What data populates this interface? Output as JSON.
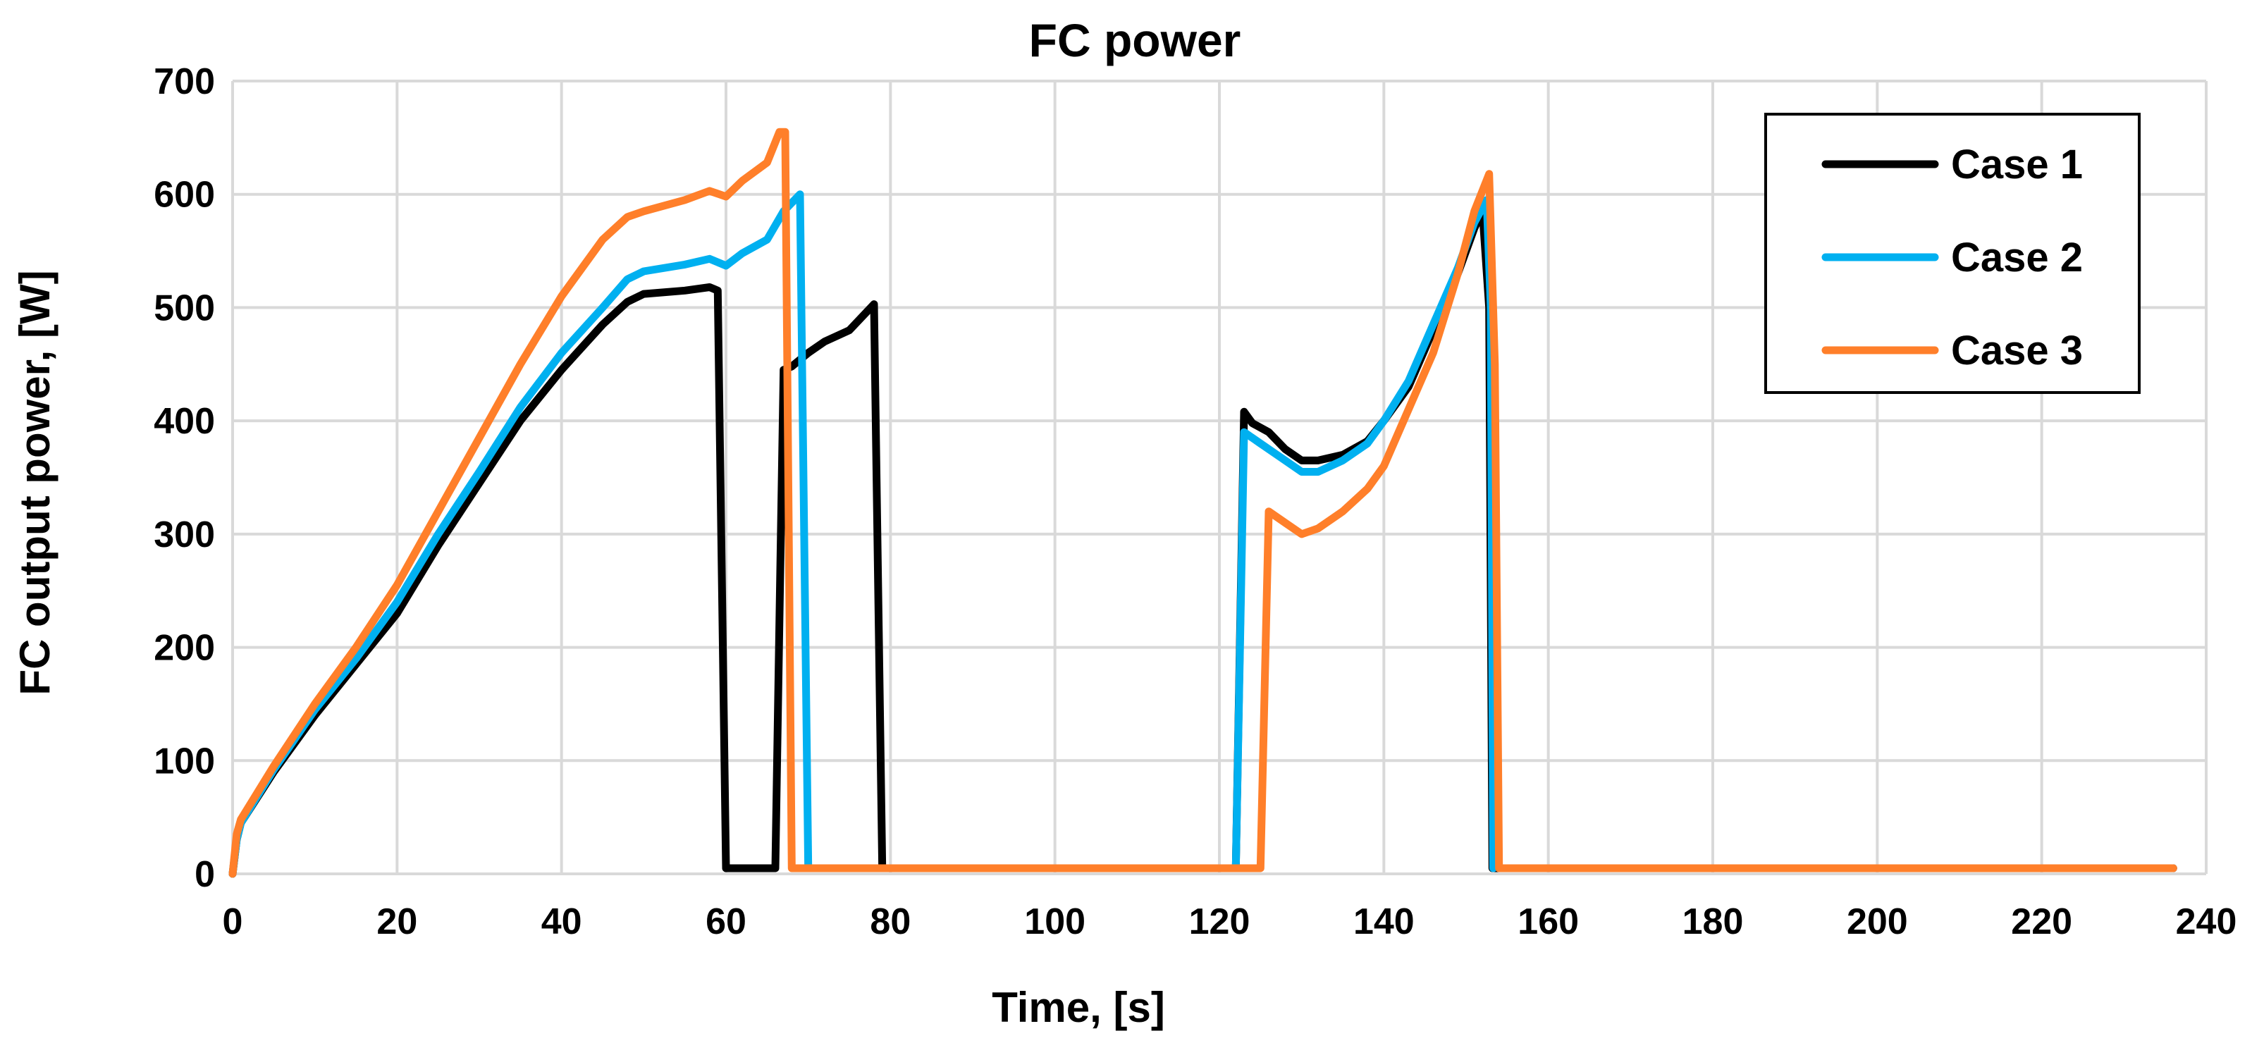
{
  "chart_data": {
    "type": "line",
    "title": "FC power",
    "xlabel": "Time, [s]",
    "ylabel": "FC output power, [W]",
    "xlim": [
      0,
      240
    ],
    "ylim": [
      0,
      700
    ],
    "x_ticks": [
      0,
      20,
      40,
      60,
      80,
      100,
      120,
      140,
      160,
      180,
      200,
      220,
      240
    ],
    "y_ticks": [
      0,
      100,
      200,
      300,
      400,
      500,
      600,
      700
    ],
    "grid": true,
    "legend_position": "top-right",
    "series": [
      {
        "name": "Case 1",
        "color": "#000000",
        "points": [
          [
            0,
            0
          ],
          [
            0.5,
            30
          ],
          [
            1,
            45
          ],
          [
            5,
            90
          ],
          [
            10,
            140
          ],
          [
            15,
            185
          ],
          [
            20,
            230
          ],
          [
            25,
            290
          ],
          [
            30,
            345
          ],
          [
            35,
            400
          ],
          [
            40,
            445
          ],
          [
            45,
            485
          ],
          [
            48,
            505
          ],
          [
            50,
            512
          ],
          [
            55,
            515
          ],
          [
            58,
            518
          ],
          [
            59,
            515
          ],
          [
            60,
            5
          ],
          [
            61,
            5
          ],
          [
            65,
            5
          ],
          [
            66,
            5
          ],
          [
            67,
            445
          ],
          [
            68,
            448
          ],
          [
            70,
            460
          ],
          [
            72,
            470
          ],
          [
            75,
            480
          ],
          [
            78,
            503
          ],
          [
            79,
            5
          ],
          [
            80,
            5
          ],
          [
            122,
            5
          ],
          [
            123,
            408
          ],
          [
            124,
            398
          ],
          [
            126,
            390
          ],
          [
            128,
            375
          ],
          [
            130,
            365
          ],
          [
            132,
            365
          ],
          [
            135,
            370
          ],
          [
            138,
            382
          ],
          [
            140,
            400
          ],
          [
            143,
            430
          ],
          [
            146,
            480
          ],
          [
            149,
            530
          ],
          [
            151,
            570
          ],
          [
            152,
            585
          ],
          [
            152.8,
            500
          ],
          [
            153.2,
            5
          ],
          [
            236,
            5
          ]
        ]
      },
      {
        "name": "Case 2",
        "color": "#00b0f0",
        "points": [
          [
            0,
            0
          ],
          [
            0.5,
            30
          ],
          [
            1,
            45
          ],
          [
            5,
            92
          ],
          [
            10,
            145
          ],
          [
            15,
            190
          ],
          [
            20,
            240
          ],
          [
            25,
            300
          ],
          [
            30,
            355
          ],
          [
            35,
            412
          ],
          [
            40,
            460
          ],
          [
            45,
            500
          ],
          [
            48,
            525
          ],
          [
            50,
            532
          ],
          [
            55,
            538
          ],
          [
            58,
            543
          ],
          [
            60,
            537
          ],
          [
            62,
            548
          ],
          [
            65,
            560
          ],
          [
            67,
            585
          ],
          [
            69,
            600
          ],
          [
            70,
            5
          ],
          [
            71,
            5
          ],
          [
            122,
            5
          ],
          [
            123,
            390
          ],
          [
            125,
            380
          ],
          [
            127,
            370
          ],
          [
            130,
            355
          ],
          [
            132,
            355
          ],
          [
            135,
            365
          ],
          [
            138,
            380
          ],
          [
            140,
            400
          ],
          [
            143,
            435
          ],
          [
            146,
            485
          ],
          [
            149,
            535
          ],
          [
            151,
            575
          ],
          [
            152.5,
            595
          ],
          [
            153,
            500
          ],
          [
            153.3,
            5
          ]
        ]
      },
      {
        "name": "Case 3",
        "color": "#ff7f2a",
        "points": [
          [
            0,
            0
          ],
          [
            0.5,
            35
          ],
          [
            1,
            48
          ],
          [
            5,
            95
          ],
          [
            10,
            150
          ],
          [
            15,
            200
          ],
          [
            20,
            255
          ],
          [
            25,
            320
          ],
          [
            30,
            385
          ],
          [
            35,
            450
          ],
          [
            40,
            510
          ],
          [
            45,
            560
          ],
          [
            48,
            580
          ],
          [
            50,
            585
          ],
          [
            55,
            595
          ],
          [
            58,
            603
          ],
          [
            60,
            598
          ],
          [
            62,
            612
          ],
          [
            65,
            628
          ],
          [
            66.5,
            655
          ],
          [
            67.2,
            655
          ],
          [
            68,
            5
          ],
          [
            70,
            5
          ],
          [
            125,
            5
          ],
          [
            126,
            320
          ],
          [
            128,
            310
          ],
          [
            130,
            300
          ],
          [
            132,
            305
          ],
          [
            135,
            320
          ],
          [
            138,
            340
          ],
          [
            140,
            360
          ],
          [
            143,
            410
          ],
          [
            146,
            460
          ],
          [
            149,
            530
          ],
          [
            151,
            585
          ],
          [
            152.8,
            618
          ],
          [
            153.5,
            450
          ],
          [
            154,
            5
          ],
          [
            236,
            5
          ]
        ]
      }
    ]
  }
}
